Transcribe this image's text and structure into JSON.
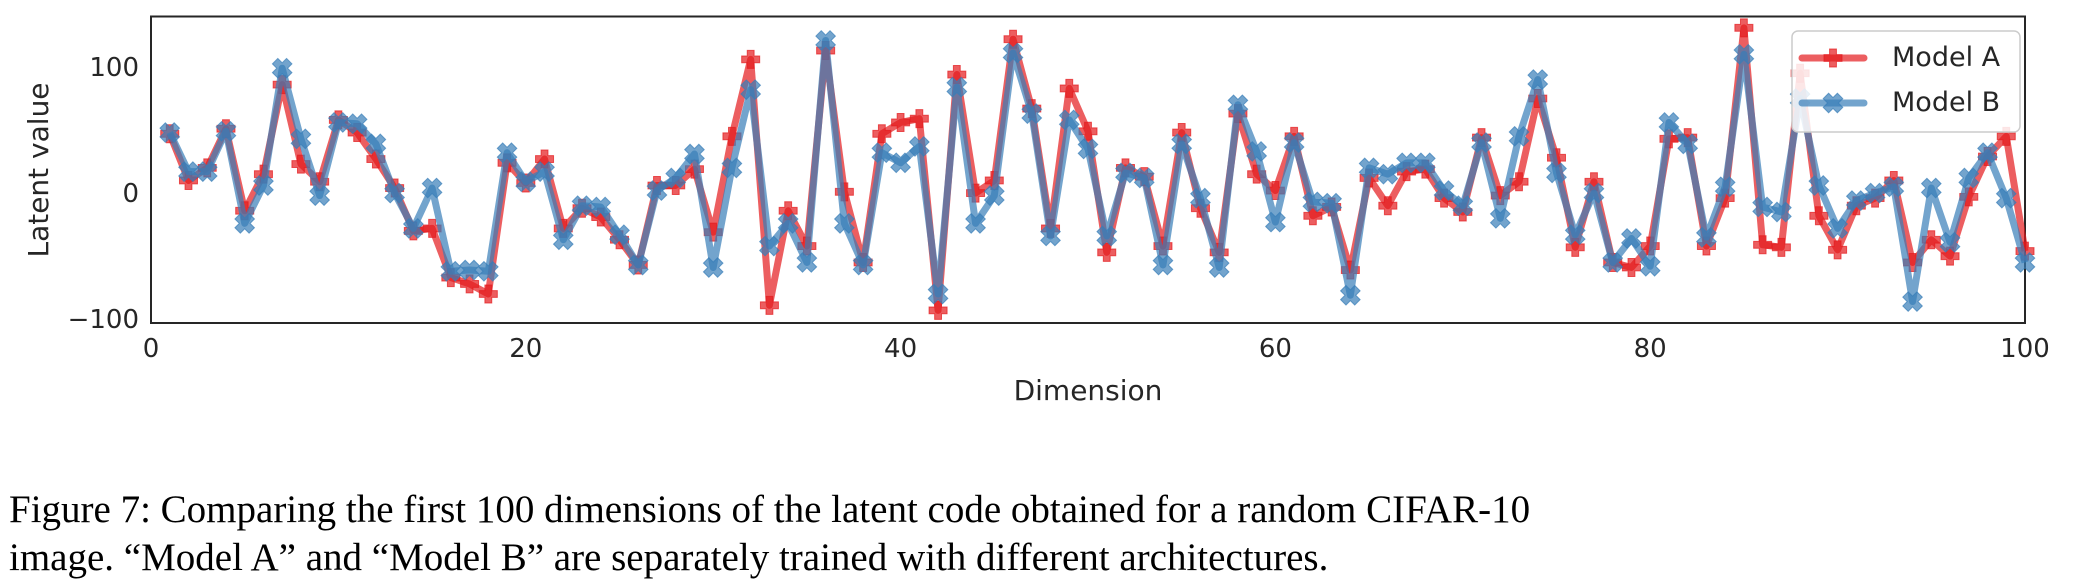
{
  "chart_data": {
    "type": "line",
    "title": "",
    "xlabel": "Dimension",
    "ylabel": "Latent value",
    "xlim": [
      0,
      100
    ],
    "ylim": [
      -103,
      140
    ],
    "xticks": [
      0,
      20,
      40,
      60,
      80,
      100
    ],
    "yticks": [
      -100,
      0,
      100
    ],
    "xtick_labels": [
      "0",
      "20",
      "40",
      "60",
      "80",
      "100"
    ],
    "ytick_labels": [
      "−100",
      "0",
      "100"
    ],
    "grid": false,
    "legend_position": "top-right",
    "x": [
      1,
      2,
      3,
      4,
      5,
      6,
      7,
      8,
      9,
      10,
      11,
      12,
      13,
      14,
      15,
      16,
      17,
      18,
      19,
      20,
      21,
      22,
      23,
      24,
      25,
      26,
      27,
      28,
      29,
      30,
      31,
      32,
      33,
      34,
      35,
      36,
      37,
      38,
      39,
      40,
      41,
      42,
      43,
      44,
      45,
      46,
      47,
      48,
      49,
      50,
      51,
      52,
      53,
      54,
      55,
      56,
      57,
      58,
      59,
      60,
      61,
      62,
      63,
      64,
      65,
      66,
      67,
      68,
      69,
      70,
      71,
      72,
      73,
      74,
      75,
      76,
      77,
      78,
      79,
      80,
      81,
      82,
      83,
      84,
      85,
      86,
      87,
      88,
      89,
      90,
      91,
      92,
      93,
      94,
      95,
      96,
      97,
      98,
      99,
      100
    ],
    "series": [
      {
        "name": "Model A",
        "color": "#e41a1c",
        "marker": "plus-filled",
        "values": [
          47,
          10,
          20,
          51,
          -14,
          15,
          86,
          23,
          9,
          58,
          48,
          27,
          4,
          -30,
          -28,
          -67,
          -72,
          -80,
          24,
          8,
          27,
          -28,
          -12,
          -19,
          -37,
          -57,
          6,
          6,
          19,
          -31,
          45,
          106,
          -89,
          -14,
          -42,
          113,
          1,
          -55,
          47,
          56,
          59,
          -93,
          94,
          0,
          10,
          122,
          67,
          -28,
          83,
          49,
          -47,
          20,
          13,
          -42,
          48,
          -12,
          -47,
          63,
          15,
          2,
          45,
          -18,
          -11,
          -61,
          12,
          -10,
          17,
          19,
          -4,
          -15,
          44,
          -2,
          9,
          75,
          28,
          -43,
          9,
          -55,
          -59,
          -42,
          43,
          44,
          -42,
          -4,
          131,
          -41,
          -43,
          95,
          -18,
          -45,
          -10,
          -4,
          10,
          -55,
          -37,
          -50,
          -3,
          29,
          45,
          -46
        ]
      },
      {
        "name": "Model B",
        "color": "#377eb8",
        "marker": "x-filled",
        "values": [
          48,
          17,
          17,
          49,
          -24,
          6,
          99,
          43,
          -2,
          56,
          55,
          39,
          0,
          -28,
          4,
          -62,
          -61,
          -62,
          32,
          9,
          17,
          -37,
          -10,
          -11,
          -33,
          -57,
          2,
          12,
          31,
          -59,
          20,
          82,
          -42,
          -24,
          -55,
          121,
          -24,
          -57,
          32,
          24,
          37,
          -80,
          84,
          -24,
          -2,
          111,
          63,
          -34,
          58,
          35,
          -34,
          16,
          12,
          -57,
          39,
          -4,
          -59,
          70,
          33,
          -23,
          40,
          -7,
          -8,
          -81,
          20,
          15,
          24,
          24,
          2,
          -10,
          40,
          -20,
          45,
          90,
          16,
          -33,
          0,
          -55,
          -36,
          -58,
          56,
          39,
          -35,
          5,
          110,
          -11,
          -15,
          75,
          6,
          -28,
          -6,
          0,
          5,
          -86,
          4,
          -39,
          12,
          32,
          -4,
          -55
        ]
      }
    ]
  },
  "caption": {
    "line1": "Figure 7: Comparing the first 100 dimensions of the latent code obtained for a random CIFAR-10",
    "line2": "image. “Model A” and “Model B” are separately trained with different architectures."
  }
}
